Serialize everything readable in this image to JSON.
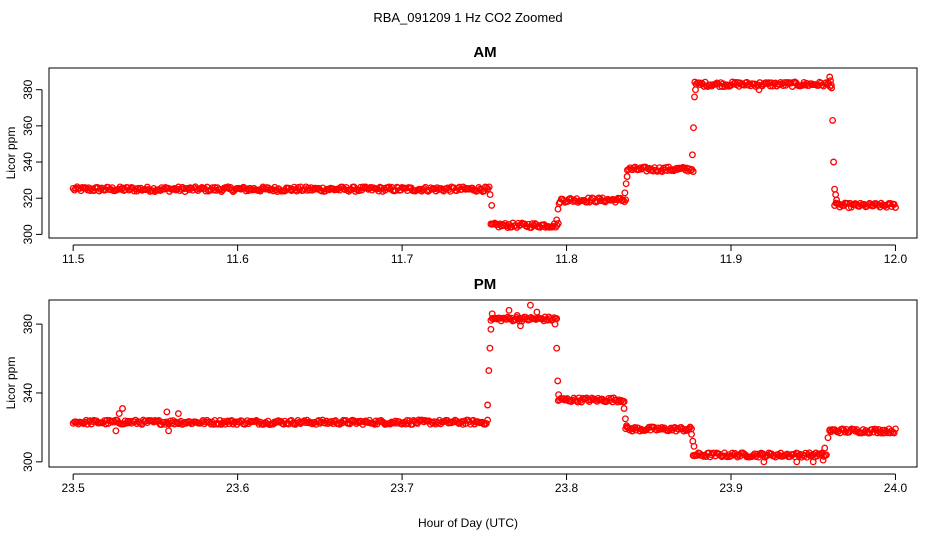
{
  "figure": {
    "title": "RBA_091209  1 Hz CO2 Zoomed",
    "xlabel": "Hour of Day (UTC)"
  },
  "colors": {
    "points": "#ff0000",
    "axes": "#000000"
  },
  "chart_data": [
    {
      "type": "scatter",
      "title": "AM",
      "ylabel": "Licor ppm",
      "xlim": [
        11.5,
        12.0
      ],
      "ylim": [
        298,
        392
      ],
      "xticks": [
        11.5,
        11.6,
        11.7,
        11.8,
        11.9,
        12.0
      ],
      "xtick_labels": [
        "11.5",
        "11.6",
        "11.7",
        "11.8",
        "11.9",
        "12.0"
      ],
      "yticks": [
        300,
        320,
        340,
        360,
        380
      ],
      "ytick_labels": [
        "300",
        "320",
        "340",
        "360",
        "380"
      ],
      "grid": false,
      "segments": [
        {
          "x_start": 11.5,
          "x_end": 11.753,
          "y": 325
        },
        {
          "x_start": 11.754,
          "x_end": 11.795,
          "y": 305
        },
        {
          "x_start": 11.796,
          "x_end": 11.836,
          "y": 319
        },
        {
          "x_start": 11.837,
          "x_end": 11.877,
          "y": 336
        },
        {
          "x_start": 11.878,
          "x_end": 11.961,
          "y": 383
        },
        {
          "x_start": 11.963,
          "x_end": 12.0,
          "y": 316
        }
      ],
      "points": [
        [
          11.7535,
          322
        ],
        [
          11.7545,
          316
        ],
        [
          11.794,
          308
        ],
        [
          11.7948,
          314
        ],
        [
          11.7955,
          317
        ],
        [
          11.8355,
          323
        ],
        [
          11.8362,
          328
        ],
        [
          11.8368,
          332
        ],
        [
          11.8765,
          344
        ],
        [
          11.8772,
          359
        ],
        [
          11.8778,
          376
        ],
        [
          11.8784,
          380
        ],
        [
          11.917,
          380
        ],
        [
          11.96,
          387
        ],
        [
          11.9605,
          385
        ],
        [
          11.9612,
          381
        ],
        [
          11.9618,
          363
        ],
        [
          11.9624,
          340
        ],
        [
          11.963,
          325
        ],
        [
          11.9636,
          322
        ],
        [
          11.9642,
          319
        ]
      ]
    },
    {
      "type": "scatter",
      "title": "PM",
      "ylabel": "Licor ppm",
      "xlim": [
        23.5,
        24.0
      ],
      "ylim": [
        297,
        394
      ],
      "xticks": [
        23.5,
        23.6,
        23.7,
        23.8,
        23.9,
        24.0
      ],
      "xtick_labels": [
        "23.5",
        "23.6",
        "23.7",
        "23.8",
        "23.9",
        "24.0"
      ],
      "yticks": [
        300,
        340,
        380
      ],
      "ytick_labels": [
        "300",
        "340",
        "380"
      ],
      "grid": false,
      "segments": [
        {
          "x_start": 23.5,
          "x_end": 23.752,
          "y": 323
        },
        {
          "x_start": 23.754,
          "x_end": 23.794,
          "y": 383
        },
        {
          "x_start": 23.795,
          "x_end": 23.835,
          "y": 336
        },
        {
          "x_start": 23.836,
          "x_end": 23.876,
          "y": 319
        },
        {
          "x_start": 23.877,
          "x_end": 23.958,
          "y": 304
        },
        {
          "x_start": 23.96,
          "x_end": 24.0,
          "y": 318
        }
      ],
      "points": [
        [
          23.528,
          328
        ],
        [
          23.53,
          331
        ],
        [
          23.526,
          318
        ],
        [
          23.558,
          318
        ],
        [
          23.557,
          329
        ],
        [
          23.564,
          328
        ],
        [
          23.752,
          333
        ],
        [
          23.7527,
          353
        ],
        [
          23.7534,
          366
        ],
        [
          23.754,
          377
        ],
        [
          23.7548,
          386
        ],
        [
          23.765,
          388
        ],
        [
          23.77,
          385
        ],
        [
          23.778,
          391
        ],
        [
          23.772,
          379
        ],
        [
          23.782,
          387
        ],
        [
          23.793,
          380
        ],
        [
          23.794,
          366
        ],
        [
          23.7946,
          347
        ],
        [
          23.7952,
          339
        ],
        [
          23.835,
          331
        ],
        [
          23.8358,
          325
        ],
        [
          23.8365,
          321
        ],
        [
          23.876,
          316
        ],
        [
          23.8768,
          312
        ],
        [
          23.8775,
          309
        ],
        [
          23.92,
          300
        ],
        [
          23.94,
          300
        ],
        [
          23.95,
          300
        ],
        [
          23.956,
          301
        ],
        [
          23.957,
          308
        ],
        [
          23.959,
          314
        ],
        [
          23.96,
          318
        ]
      ]
    }
  ]
}
